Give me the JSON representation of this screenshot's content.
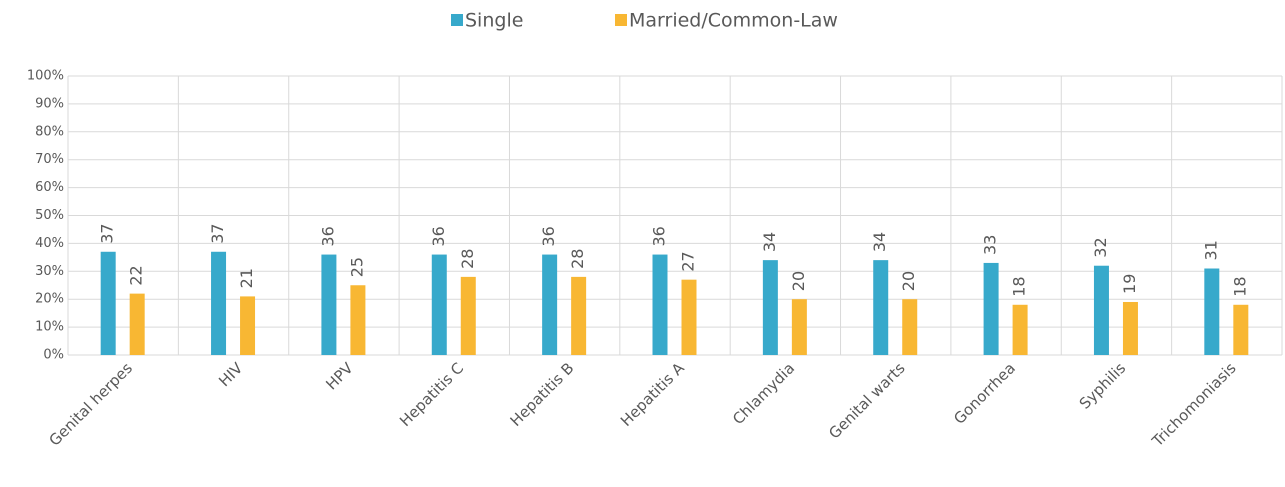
{
  "chart_data": {
    "type": "bar",
    "categories": [
      "Genital herpes",
      "HIV",
      "HPV",
      "Hepatitis C",
      "Hepatitis B",
      "Hepatitis A",
      "Chlamydia",
      "Genital warts",
      "Gonorrhea",
      "Syphilis",
      "Trichomoniasis"
    ],
    "series": [
      {
        "name": "Single",
        "color": "#37a9cb",
        "values": [
          37,
          37,
          36,
          36,
          36,
          36,
          34,
          34,
          33,
          32,
          31
        ]
      },
      {
        "name": "Married/Common-Law",
        "color": "#f8b733",
        "values": [
          22,
          21,
          25,
          28,
          28,
          27,
          20,
          20,
          18,
          19,
          18
        ]
      }
    ],
    "ylim": [
      0,
      100
    ],
    "yticks": [
      {
        "value": 0,
        "label": "0%"
      },
      {
        "value": 10,
        "label": "10%"
      },
      {
        "value": 20,
        "label": "20%"
      },
      {
        "value": 30,
        "label": "30%"
      },
      {
        "value": 40,
        "label": "40%"
      },
      {
        "value": 50,
        "label": "50%"
      },
      {
        "value": 60,
        "label": "60%"
      },
      {
        "value": 70,
        "label": "70%"
      },
      {
        "value": 80,
        "label": "80%"
      },
      {
        "value": 90,
        "label": "90%"
      },
      {
        "value": 100,
        "label": "100%"
      }
    ],
    "grid": true,
    "legend": "top"
  }
}
